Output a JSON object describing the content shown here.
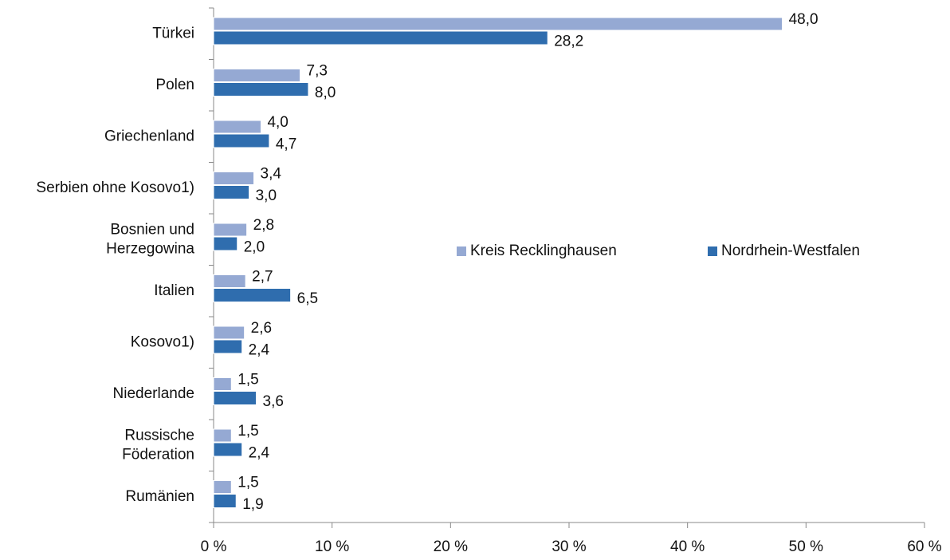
{
  "chart_data": {
    "type": "bar",
    "orientation": "horizontal",
    "categories": [
      "Türkei",
      "Polen",
      "Griechenland",
      "Serbien ohne Kosovo1)",
      "Bosnien und\nHerzegowina",
      "Italien",
      "Kosovo1)",
      "Niederlande",
      "Russische\nFöderation",
      "Rumänien"
    ],
    "series": [
      {
        "name": "Kreis Recklinghausen",
        "color": "#95a9d3",
        "values": [
          48.0,
          7.3,
          4.0,
          3.4,
          2.8,
          2.7,
          2.6,
          1.5,
          1.5,
          1.5
        ],
        "value_labels": [
          "48,0",
          "7,3",
          "4,0",
          "3,4",
          "2,8",
          "2,7",
          "2,6",
          "1,5",
          "1,5",
          "1,5"
        ]
      },
      {
        "name": "Nordrhein-Westfalen",
        "color": "#2f6dae",
        "values": [
          28.2,
          8.0,
          4.7,
          3.0,
          2.0,
          6.5,
          2.4,
          3.6,
          2.4,
          1.9
        ],
        "value_labels": [
          "28,2",
          "8,0",
          "4,7",
          "3,0",
          "2,0",
          "6,5",
          "2,4",
          "3,6",
          "2,4",
          "1,9"
        ]
      }
    ],
    "xlim": [
      0,
      60
    ],
    "xticks": [
      {
        "value": 0,
        "label": "0 %"
      },
      {
        "value": 10,
        "label": "10 %"
      },
      {
        "value": 20,
        "label": "20 %"
      },
      {
        "value": 30,
        "label": "30 %"
      },
      {
        "value": 40,
        "label": "40 %"
      },
      {
        "value": 50,
        "label": "50 %"
      },
      {
        "value": 60,
        "label": "60 %"
      }
    ],
    "legend": "center"
  }
}
